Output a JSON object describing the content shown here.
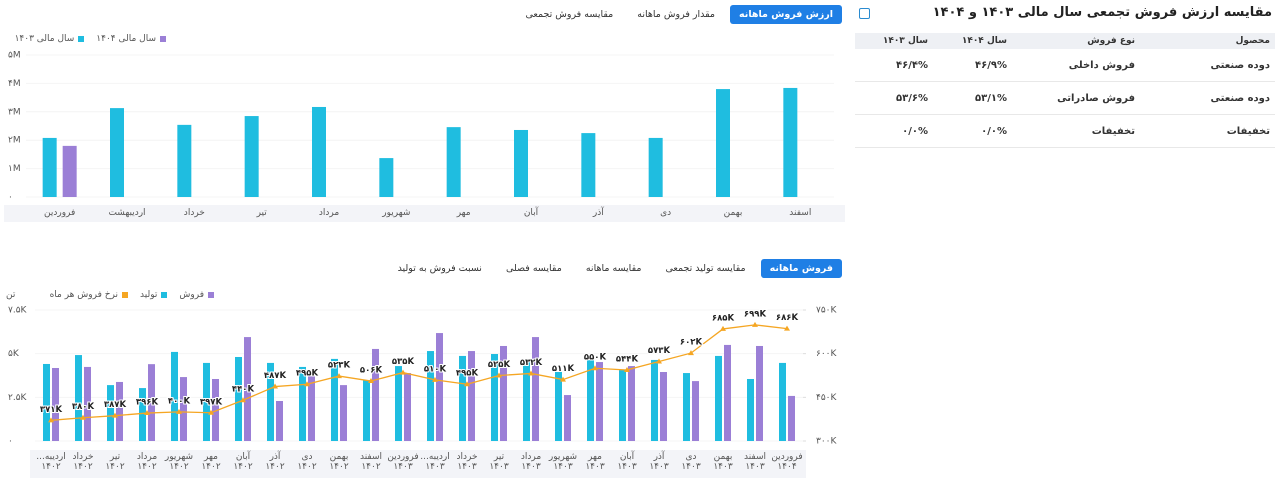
{
  "top_tabs": {
    "items": [
      "ارزش فروش ماهانه",
      "مقدار فروش ماهانه",
      "مقایسه فروش تجمعی"
    ],
    "active": 0
  },
  "bottom_tabs": {
    "items": [
      "فروش ماهانه",
      "مقایسه تولید تجمعی",
      "مقایسه ماهانه",
      "مقایسه فصلی",
      "نسبت فروش به تولید"
    ],
    "active": 0
  },
  "chart_data": [
    {
      "type": "bar",
      "categories": [
        "فروردین",
        "اردیبهشت",
        "خرداد",
        "تیر",
        "مرداد",
        "شهریور",
        "مهر",
        "آبان",
        "آذر",
        "دی",
        "بهمن",
        "اسفند"
      ],
      "series": [
        {
          "name": "سال مالی ۱۴۰۴",
          "color": "#9b7fd6",
          "values": [
            1800000,
            null,
            null,
            null,
            null,
            null,
            null,
            null,
            null,
            null,
            null,
            null
          ]
        },
        {
          "name": "سال مالی ۱۴۰۳",
          "color": "#1fbde0",
          "values": [
            2080000,
            3130000,
            2540000,
            2850000,
            3170000,
            1370000,
            2460000,
            2360000,
            2250000,
            2080000,
            3800000,
            3840000
          ]
        }
      ],
      "ylim": [
        0,
        5000000
      ],
      "yticks": [
        {
          "value": 0,
          "label": "۰"
        },
        {
          "value": 1000000,
          "label": "۱M"
        },
        {
          "value": 2000000,
          "label": "۲M"
        },
        {
          "value": 3000000,
          "label": "۳M"
        },
        {
          "value": 4000000,
          "label": "۴M"
        },
        {
          "value": 5000000,
          "label": "۵M"
        }
      ]
    },
    {
      "type": "combo",
      "y_label": "تن",
      "categories": [
        "اردیبه...\n۱۴۰۲",
        "خرداد\n۱۴۰۲",
        "تیر\n۱۴۰۲",
        "مرداد\n۱۴۰۲",
        "شهریور\n۱۴۰۲",
        "مهر\n۱۴۰۲",
        "آبان\n۱۴۰۲",
        "آذر\n۱۴۰۲",
        "دی\n۱۴۰۲",
        "بهمن\n۱۴۰۲",
        "اسفند\n۱۴۰۲",
        "فروردین\n۱۴۰۳",
        "اردیبه...\n۱۴۰۳",
        "خرداد\n۱۴۰۳",
        "تیر\n۱۴۰۳",
        "مرداد\n۱۴۰۳",
        "شهریور\n۱۴۰۳",
        "مهر\n۱۴۰۳",
        "آبان\n۱۴۰۳",
        "آذر\n۱۴۰۳",
        "دی\n۱۴۰۳",
        "بهمن\n۱۴۰۳",
        "اسفند\n۱۴۰۳",
        "فروردین\n۱۴۰۴"
      ],
      "series": [
        {
          "name": "فروش",
          "color": "#9b7fd6",
          "values": [
            4180,
            4240,
            3380,
            4400,
            3660,
            3550,
            5950,
            2290,
            3780,
            3200,
            5270,
            3890,
            6180,
            5150,
            5440,
            5950,
            2630,
            4520,
            4290,
            3950,
            3430,
            5500,
            5440,
            2580
          ]
        },
        {
          "name": "تولید",
          "color": "#1fbde0",
          "values": [
            4410,
            4920,
            3200,
            3030,
            5100,
            4470,
            4810,
            4470,
            4240,
            4700,
            3490,
            4290,
            5150,
            4870,
            4980,
            4580,
            3950,
            4920,
            4060,
            4640,
            3890,
            4870,
            3550,
            4470
          ]
        },
        {
          "name": "نرخ فروش هر ماه",
          "color": "#f5a623",
          "axis": "y2",
          "values": [
            371000,
            380000,
            387000,
            396000,
            400000,
            397000,
            440000,
            487000,
            495000,
            523000,
            506000,
            535000,
            510000,
            495000,
            525000,
            532000,
            511000,
            550000,
            544000,
            573000,
            602000,
            685000,
            699000,
            686000
          ],
          "value_labels": [
            "۳۷۱K",
            "۳۸۰K",
            "۳۸۷K",
            "۳۹۶K",
            "۴۰۰K",
            "۳۹۷K",
            "۴۴۰K",
            "۴۸۷K",
            "۴۹۵K",
            "۵۲۳K",
            "۵۰۶K",
            "۵۳۵K",
            "۵۱۰K",
            "۴۹۵K",
            "۵۲۵K",
            "۵۳۲K",
            "۵۱۱K",
            "۵۵۰K",
            "۵۴۴K",
            "۵۷۳K",
            "۶۰۲K",
            "۶۸۵K",
            "۶۹۹K",
            "۶۸۶K"
          ]
        }
      ],
      "ylim": [
        0,
        7500
      ],
      "yticks": [
        {
          "value": 0,
          "label": "۰"
        },
        {
          "value": 2500,
          "label": "۲.۵K"
        },
        {
          "value": 5000,
          "label": "۵K"
        },
        {
          "value": 7500,
          "label": "۷.۵K"
        }
      ],
      "y2lim": [
        300000,
        750000
      ],
      "y2ticks": [
        {
          "value": 300000,
          "label": "۳۰۰K"
        },
        {
          "value": 450000,
          "label": "۴۵۰K"
        },
        {
          "value": 600000,
          "label": "۶۰۰K"
        },
        {
          "value": 750000,
          "label": "۷۵۰K"
        }
      ]
    }
  ],
  "table": {
    "title": "مقایسه ارزش فروش تجمعی سال مالی ۱۴۰۳ و ۱۴۰۴",
    "header": [
      "محصول",
      "نوع فروش",
      "سال ۱۴۰۴",
      "سال ۱۴۰۳"
    ],
    "rows": [
      [
        "دوده صنعتی",
        "فروش داخلی",
        "۴۶/۹%",
        "۴۶/۴%"
      ],
      [
        "دوده صنعتی",
        "فروش صادراتی",
        "۵۳/۱%",
        "۵۳/۶%"
      ],
      [
        "تخفیفات",
        "تخفیفات",
        "۰/۰%",
        "۰/۰%"
      ]
    ]
  }
}
